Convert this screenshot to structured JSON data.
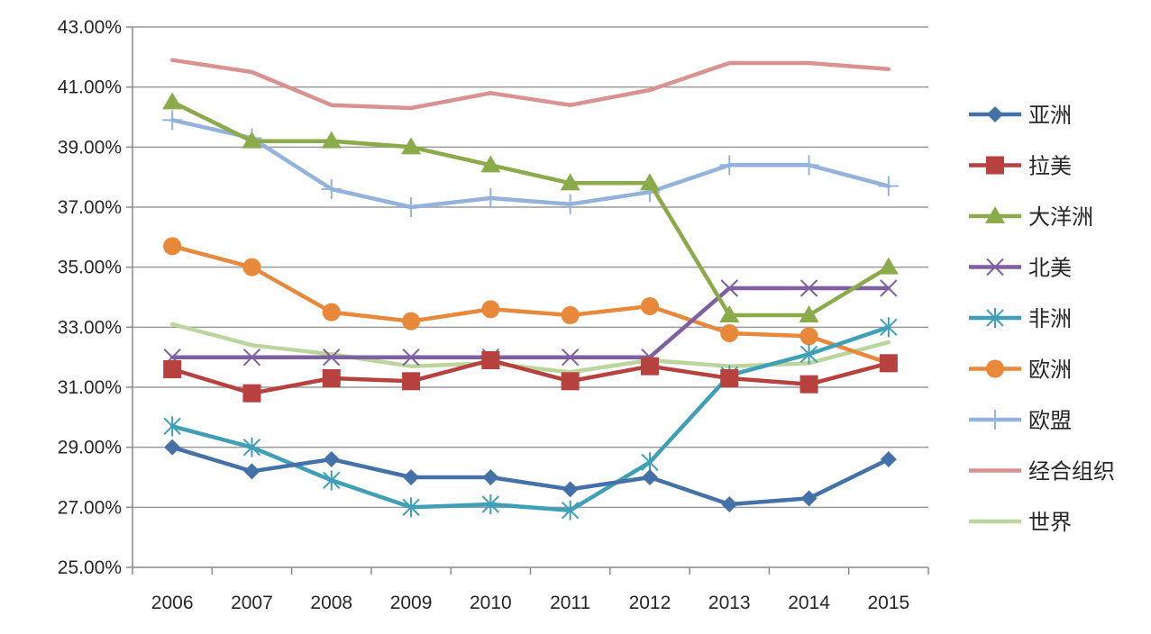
{
  "chart_data": {
    "type": "line",
    "title": "",
    "xlabel": "",
    "ylabel": "",
    "categories": [
      "2006",
      "2007",
      "2008",
      "2009",
      "2010",
      "2011",
      "2012",
      "2013",
      "2014",
      "2015"
    ],
    "ylim": [
      25,
      43
    ],
    "yticks": [
      25,
      27,
      29,
      31,
      33,
      35,
      37,
      39,
      41,
      43
    ],
    "ytick_labels": [
      "25.00%",
      "27.00%",
      "29.00%",
      "31.00%",
      "33.00%",
      "35.00%",
      "37.00%",
      "39.00%",
      "41.00%",
      "43.00%"
    ],
    "grid": "horizontal",
    "legend_position": "right",
    "series": [
      {
        "name": "亚洲",
        "color": "#4472A8",
        "marker": "diamond",
        "values": [
          29.0,
          28.2,
          28.6,
          28.0,
          28.0,
          27.6,
          28.0,
          27.1,
          27.3,
          28.6
        ]
      },
      {
        "name": "拉美",
        "color": "#B7413E",
        "marker": "square",
        "values": [
          31.6,
          30.8,
          31.3,
          31.2,
          31.9,
          31.2,
          31.7,
          31.3,
          31.1,
          31.8
        ]
      },
      {
        "name": "大洋洲",
        "color": "#8BAA4A",
        "marker": "triangle",
        "values": [
          40.5,
          39.2,
          39.2,
          39.0,
          38.4,
          37.8,
          37.8,
          33.4,
          33.4,
          35.0
        ]
      },
      {
        "name": "北美",
        "color": "#7E5FA1",
        "marker": "x",
        "values": [
          32.0,
          32.0,
          32.0,
          32.0,
          32.0,
          32.0,
          32.0,
          34.3,
          34.3,
          34.3
        ]
      },
      {
        "name": "非洲",
        "color": "#3F9FB7",
        "marker": "asterisk",
        "values": [
          29.7,
          29.0,
          27.9,
          27.0,
          27.1,
          26.9,
          28.5,
          31.4,
          32.1,
          33.0
        ]
      },
      {
        "name": "欧洲",
        "color": "#E7883A",
        "marker": "circle",
        "values": [
          35.7,
          35.0,
          33.5,
          33.2,
          33.6,
          33.4,
          33.7,
          32.8,
          32.7,
          31.8
        ]
      },
      {
        "name": "欧盟",
        "color": "#94B3DC",
        "marker": "plus",
        "values": [
          39.9,
          39.3,
          37.6,
          37.0,
          37.3,
          37.1,
          37.5,
          38.4,
          38.4,
          37.7
        ]
      },
      {
        "name": "经合组织",
        "color": "#D9928F",
        "marker": "none",
        "values": [
          41.9,
          41.5,
          40.4,
          40.3,
          40.8,
          40.4,
          40.9,
          41.8,
          41.8,
          41.6
        ]
      },
      {
        "name": "世界",
        "color": "#BCD59C",
        "marker": "none",
        "values": [
          33.1,
          32.4,
          32.1,
          31.7,
          31.8,
          31.5,
          31.9,
          31.7,
          31.8,
          32.5
        ]
      }
    ]
  }
}
